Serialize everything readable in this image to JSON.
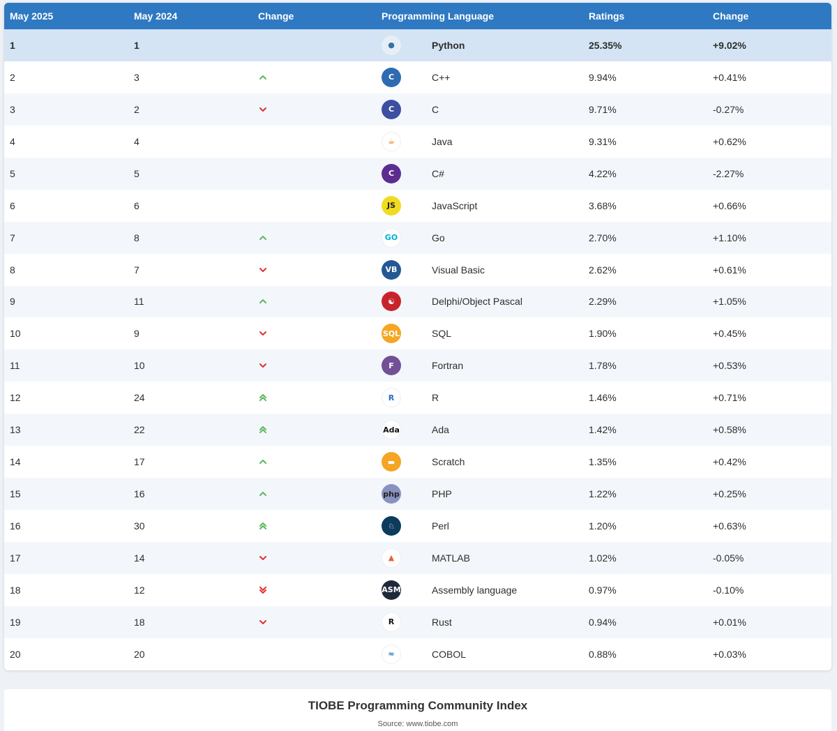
{
  "header": {
    "col_current": "May 2025",
    "col_previous": "May 2024",
    "col_change": "Change",
    "col_language": "Programming Language",
    "col_ratings": "Ratings",
    "col_change_pct": "Change"
  },
  "colors": {
    "header_bg": "#2f79c2",
    "up": "#5cb85c",
    "down": "#e0322b"
  },
  "rows": [
    {
      "rank": "1",
      "prev": "1",
      "trend": "none",
      "logo": "python-logo",
      "name": "Python",
      "rating": "25.35%",
      "delta": "+9.02%"
    },
    {
      "rank": "2",
      "prev": "3",
      "trend": "up",
      "logo": "cpp-logo",
      "name": "C++",
      "rating": "9.94%",
      "delta": "+0.41%"
    },
    {
      "rank": "3",
      "prev": "2",
      "trend": "down",
      "logo": "c-logo",
      "name": "C",
      "rating": "9.71%",
      "delta": "-0.27%"
    },
    {
      "rank": "4",
      "prev": "4",
      "trend": "none",
      "logo": "java-logo",
      "name": "Java",
      "rating": "9.31%",
      "delta": "+0.62%"
    },
    {
      "rank": "5",
      "prev": "5",
      "trend": "none",
      "logo": "csharp-logo",
      "name": "C#",
      "rating": "4.22%",
      "delta": "-2.27%"
    },
    {
      "rank": "6",
      "prev": "6",
      "trend": "none",
      "logo": "javascript-logo",
      "name": "JavaScript",
      "rating": "3.68%",
      "delta": "+0.66%"
    },
    {
      "rank": "7",
      "prev": "8",
      "trend": "up",
      "logo": "go-logo",
      "name": "Go",
      "rating": "2.70%",
      "delta": "+1.10%"
    },
    {
      "rank": "8",
      "prev": "7",
      "trend": "down",
      "logo": "visual-basic-logo",
      "name": "Visual Basic",
      "rating": "2.62%",
      "delta": "+0.61%"
    },
    {
      "rank": "9",
      "prev": "11",
      "trend": "up",
      "logo": "delphi-logo",
      "name": "Delphi/Object Pascal",
      "rating": "2.29%",
      "delta": "+1.05%"
    },
    {
      "rank": "10",
      "prev": "9",
      "trend": "down",
      "logo": "sql-logo",
      "name": "SQL",
      "rating": "1.90%",
      "delta": "+0.45%"
    },
    {
      "rank": "11",
      "prev": "10",
      "trend": "down",
      "logo": "fortran-logo",
      "name": "Fortran",
      "rating": "1.78%",
      "delta": "+0.53%"
    },
    {
      "rank": "12",
      "prev": "24",
      "trend": "up2",
      "logo": "r-logo",
      "name": "R",
      "rating": "1.46%",
      "delta": "+0.71%"
    },
    {
      "rank": "13",
      "prev": "22",
      "trend": "up2",
      "logo": "ada-logo",
      "name": "Ada",
      "rating": "1.42%",
      "delta": "+0.58%"
    },
    {
      "rank": "14",
      "prev": "17",
      "trend": "up",
      "logo": "scratch-logo",
      "name": "Scratch",
      "rating": "1.35%",
      "delta": "+0.42%"
    },
    {
      "rank": "15",
      "prev": "16",
      "trend": "up",
      "logo": "php-logo",
      "name": "PHP",
      "rating": "1.22%",
      "delta": "+0.25%"
    },
    {
      "rank": "16",
      "prev": "30",
      "trend": "up2",
      "logo": "perl-logo",
      "name": "Perl",
      "rating": "1.20%",
      "delta": "+0.63%"
    },
    {
      "rank": "17",
      "prev": "14",
      "trend": "down",
      "logo": "matlab-logo",
      "name": "MATLAB",
      "rating": "1.02%",
      "delta": "-0.05%"
    },
    {
      "rank": "18",
      "prev": "12",
      "trend": "down2",
      "logo": "assembly-logo",
      "name": "Assembly language",
      "rating": "0.97%",
      "delta": "-0.10%"
    },
    {
      "rank": "19",
      "prev": "18",
      "trend": "down",
      "logo": "rust-logo",
      "name": "Rust",
      "rating": "0.94%",
      "delta": "+0.01%"
    },
    {
      "rank": "20",
      "prev": "20",
      "trend": "none",
      "logo": "cobol-logo",
      "name": "COBOL",
      "rating": "0.88%",
      "delta": "+0.03%"
    }
  ],
  "logo_text": {
    "javascript-logo": "JS",
    "go-logo": "GO",
    "visual-basic-logo": "VB",
    "sql-logo": "SQL",
    "fortran-logo": "F",
    "r-logo": "R",
    "ada-logo": "Ada",
    "php-logo": "php",
    "assembly-logo": "ASM",
    "rust-logo": "R",
    "c-logo": "C",
    "cpp-logo": "C",
    "csharp-logo": "C"
  },
  "footer": {
    "title": "TIOBE Programming Community Index",
    "source": "Source: www.tiobe.com"
  }
}
